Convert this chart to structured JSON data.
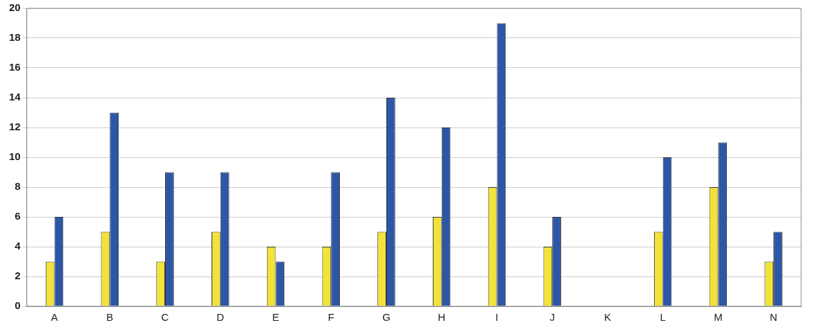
{
  "chart_data": {
    "type": "bar",
    "categories": [
      "A",
      "B",
      "C",
      "D",
      "E",
      "F",
      "G",
      "H",
      "I",
      "J",
      "K",
      "L",
      "M",
      "N"
    ],
    "series": [
      {
        "color": "#f2e23a",
        "values": [
          3,
          5,
          3,
          5,
          4,
          4,
          5,
          6,
          8,
          4,
          null,
          5,
          8,
          3
        ]
      },
      {
        "color": "#2d57a6",
        "values": [
          6,
          13,
          9,
          9,
          3,
          9,
          14,
          12,
          19,
          6,
          null,
          10,
          11,
          5
        ]
      }
    ],
    "ylim": [
      0,
      20
    ],
    "yticks": [
      0,
      2,
      4,
      6,
      8,
      10,
      12,
      14,
      16,
      18,
      20
    ],
    "grid": "y",
    "legend": false
  }
}
